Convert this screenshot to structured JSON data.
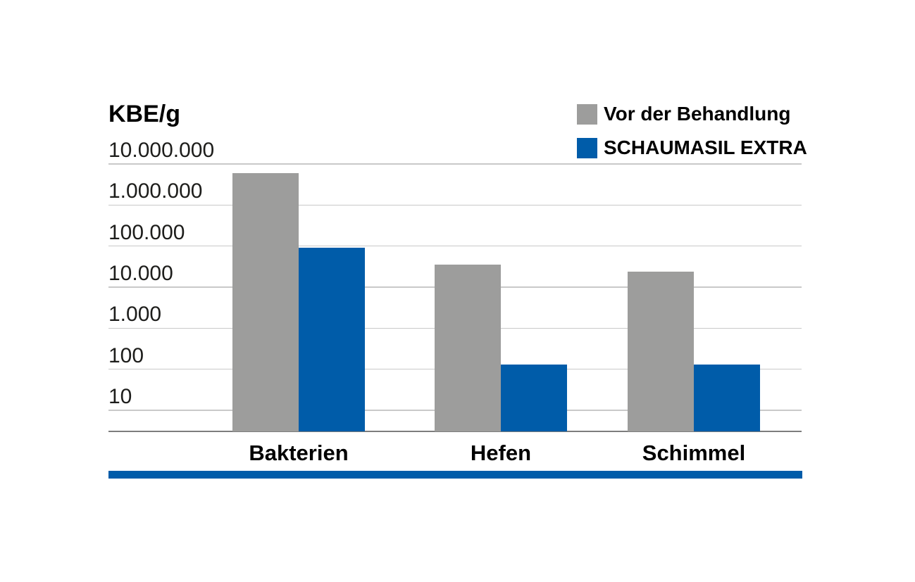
{
  "chart_data": {
    "type": "bar",
    "title": "KBE/g",
    "categories": [
      "Bakterien",
      "Hefen",
      "Schimmel"
    ],
    "series": [
      {
        "name": "Vor der Behandlung",
        "color": "#9D9D9C",
        "values": [
          6000000,
          35000,
          24000
        ]
      },
      {
        "name": "SCHAUMASIL EXTRA",
        "color": "#005CA9",
        "values": [
          90000,
          130,
          130
        ]
      }
    ],
    "y_axis": {
      "label": "KBE/g",
      "scale": "log",
      "tick_values": [
        10000000,
        1000000,
        100000,
        10000,
        1000,
        100,
        10
      ],
      "tick_labels": [
        "10.000.000",
        "1.000.000",
        "100.000",
        "10.000",
        "1.000",
        "100",
        "10"
      ],
      "min": 3,
      "max": 10000000
    },
    "grid": true,
    "legend_position": "top-right",
    "colors": {
      "gridline": "#C9C9C9",
      "axis_line": "#7D7D7D",
      "text": "#1D1D1B"
    }
  },
  "footer": {
    "accent_bar_color": "#005CA9"
  }
}
